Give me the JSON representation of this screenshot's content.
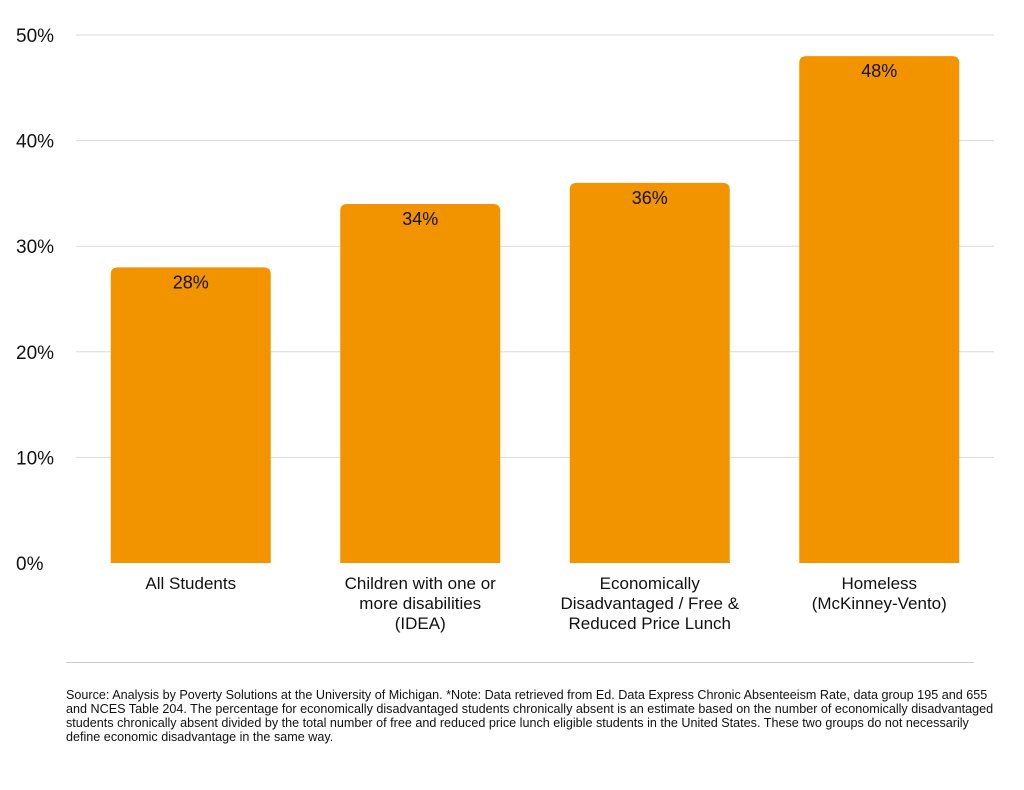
{
  "chart_data": {
    "type": "bar",
    "categories": [
      "All Students",
      "Children with one or more disabilities (IDEA)",
      "Economically Disadvantaged / Free & Reduced Price Lunch",
      "Homeless (McKinney-Vento)"
    ],
    "category_lines": [
      [
        "All Students"
      ],
      [
        "Children with one or",
        "more disabilities",
        "(IDEA)"
      ],
      [
        "Economically",
        "Disadvantaged / Free &",
        "Reduced Price Lunch"
      ],
      [
        "Homeless",
        "(McKinney-Vento)"
      ]
    ],
    "values": [
      28,
      34,
      36,
      48
    ],
    "data_labels": [
      "28%",
      "34%",
      "36%",
      "48%"
    ],
    "y_ticks": [
      0,
      10,
      20,
      30,
      40,
      50
    ],
    "y_tick_labels": [
      "0%",
      "10%",
      "20%",
      "30%",
      "40%",
      "50%"
    ],
    "ylim": [
      0,
      50
    ],
    "grid": true,
    "bar_color": "#F29300",
    "grid_color": "#d9d9d9"
  },
  "source_note": "Source: Analysis by Poverty Solutions at the University of Michigan. *Note: Data retrieved from Ed. Data Express Chronic Absenteeism Rate, data group 195 and 655 and NCES Table 204. The percentage for economically disadvantaged students chronically absent is an estimate based on the number of economically disadvantaged students chronically absent divided by the total number of free and reduced price lunch eligible students in the United States. These two groups do not necessarily define economic disadvantage in the same way."
}
